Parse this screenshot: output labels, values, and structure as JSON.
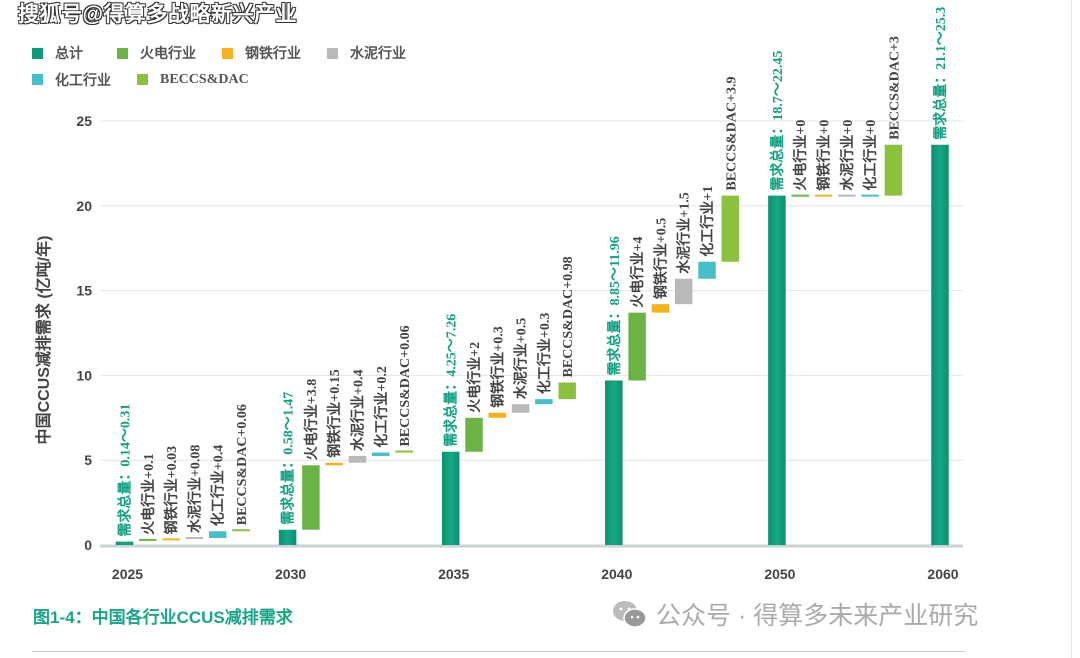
{
  "watermark_top": "搜狐号@得算多战略新兴产业",
  "caption": "图1-4：中国各行业CCUS减排需求",
  "wechat_watermark": "公众号 · 得算多未来产业研究",
  "chart_data": {
    "type": "bar",
    "subtype": "waterfall",
    "ylabel": "中国CCUS减排需求 (亿吨/年)",
    "ylim": [
      0,
      25
    ],
    "yticks": [
      0,
      5,
      10,
      15,
      20,
      25
    ],
    "grid": true,
    "legend_placement": "top-left",
    "legend": [
      {
        "name": "总计",
        "color": "#0f9a7c"
      },
      {
        "name": "火电行业",
        "color": "#6ab344"
      },
      {
        "name": "钢铁行业",
        "color": "#f5b21c"
      },
      {
        "name": "水泥行业",
        "color": "#b9b9bb"
      },
      {
        "name": "化工行业",
        "color": "#46bfc9"
      },
      {
        "name": "BECCS&DAC",
        "color": "#8cc140"
      }
    ],
    "categories": [
      "2025",
      "2030",
      "2035",
      "2040",
      "2050",
      "2060"
    ],
    "groups": [
      {
        "year": "2025",
        "total_value": 0.2,
        "total_label": "需求总量：0.14～0.31",
        "increments": [
          {
            "sector": "火电行业",
            "value": 0.1,
            "label": "火电行业+0.1"
          },
          {
            "sector": "钢铁行业",
            "value": 0.03,
            "label": "钢铁行业+0.03"
          },
          {
            "sector": "水泥行业",
            "value": 0.08,
            "label": "水泥行业+0.08"
          },
          {
            "sector": "化工行业",
            "value": 0.4,
            "label": "化工行业+0.4"
          },
          {
            "sector": "BECCS&DAC",
            "value": 0.06,
            "label": "BECCS&DAC+0.06"
          }
        ]
      },
      {
        "year": "2030",
        "total_value": 0.9,
        "total_label": "需求总量：0.58～1.47",
        "increments": [
          {
            "sector": "火电行业",
            "value": 3.8,
            "label": "火电行业+3.8"
          },
          {
            "sector": "钢铁行业",
            "value": 0.15,
            "label": "钢铁行业+0.15"
          },
          {
            "sector": "水泥行业",
            "value": 0.4,
            "label": "水泥行业+0.4"
          },
          {
            "sector": "化工行业",
            "value": 0.2,
            "label": "化工行业+0.2"
          },
          {
            "sector": "BECCS&DAC",
            "value": 0.06,
            "label": "BECCS&DAC+0.06"
          }
        ]
      },
      {
        "year": "2035",
        "total_value": 5.5,
        "total_label": "需求总量：4.25～7.26",
        "increments": [
          {
            "sector": "火电行业",
            "value": 2,
            "label": "火电行业+2"
          },
          {
            "sector": "钢铁行业",
            "value": 0.3,
            "label": "钢铁行业+0.3"
          },
          {
            "sector": "水泥行业",
            "value": 0.5,
            "label": "水泥行业+0.5"
          },
          {
            "sector": "化工行业",
            "value": 0.3,
            "label": "化工行业+0.3"
          },
          {
            "sector": "BECCS&DAC",
            "value": 0.98,
            "label": "BECCS&DAC+0.98"
          }
        ]
      },
      {
        "year": "2040",
        "total_value": 9.7,
        "total_label": "需求总量：8.85～11.96",
        "increments": [
          {
            "sector": "火电行业",
            "value": 4,
            "label": "火电行业+4"
          },
          {
            "sector": "钢铁行业",
            "value": 0.5,
            "label": "钢铁行业+0.5"
          },
          {
            "sector": "水泥行业",
            "value": 1.5,
            "label": "水泥行业+1.5"
          },
          {
            "sector": "化工行业",
            "value": 1,
            "label": "化工行业+1"
          },
          {
            "sector": "BECCS&DAC",
            "value": 3.9,
            "label": "BECCS&DAC+3.9"
          }
        ]
      },
      {
        "year": "2050",
        "total_value": 20.6,
        "total_label": "需求总量：18.7～22.45",
        "increments": [
          {
            "sector": "火电行业",
            "value": 0,
            "label": "火电行业+0"
          },
          {
            "sector": "钢铁行业",
            "value": 0,
            "label": "钢铁行业+0"
          },
          {
            "sector": "水泥行业",
            "value": 0,
            "label": "水泥行业+0"
          },
          {
            "sector": "化工行业",
            "value": 0,
            "label": "化工行业+0"
          },
          {
            "sector": "BECCS&DAC",
            "value": 3,
            "label": "BECCS&DAC+3"
          }
        ]
      },
      {
        "year": "2060",
        "total_value": 23.6,
        "total_label": "需求总量：21.1～25.3",
        "increments": []
      }
    ]
  }
}
